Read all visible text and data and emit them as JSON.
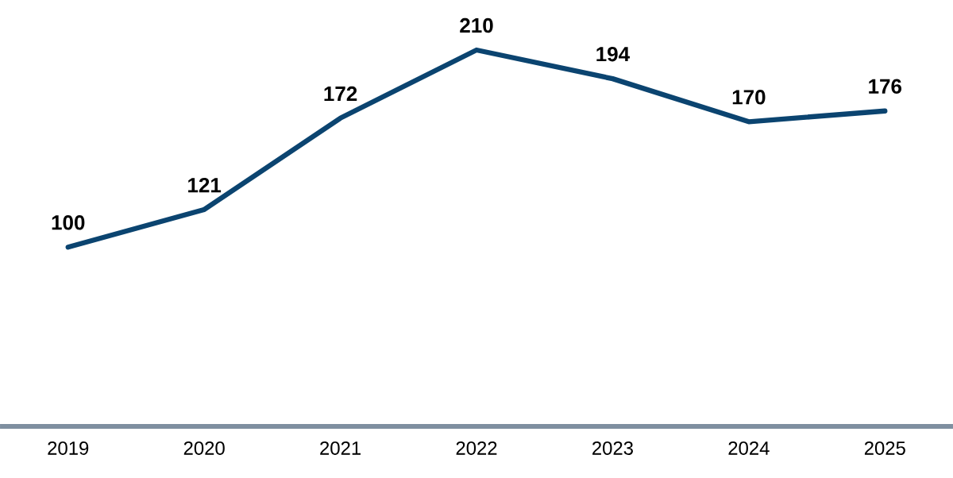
{
  "chart_data": {
    "type": "line",
    "categories": [
      "2019",
      "2020",
      "2021",
      "2022",
      "2023",
      "2024",
      "2025"
    ],
    "series": [
      {
        "color": "#0b4470",
        "values": [
          100,
          121,
          172,
          210,
          194,
          170,
          176
        ]
      }
    ],
    "data_labels": true,
    "marker": "none",
    "line_style": "solid"
  }
}
